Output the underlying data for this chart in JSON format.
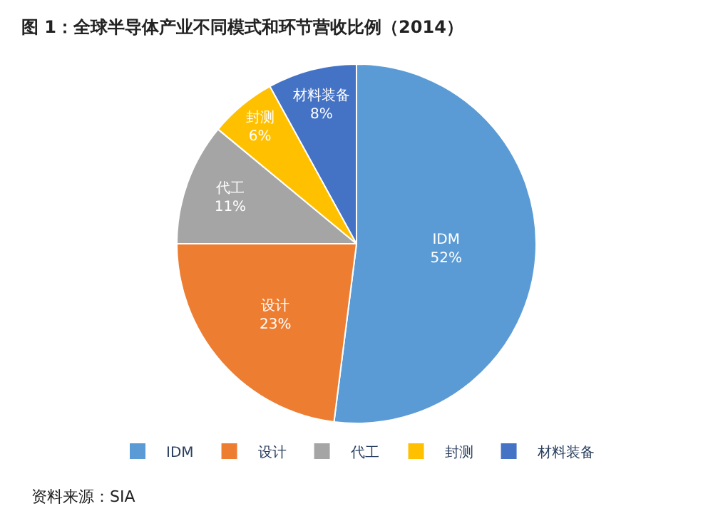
{
  "chart_data": {
    "type": "pie",
    "title": "图 1：全球半导体产业不同模式和环节营收比例（2014）",
    "categories": [
      "IDM",
      "设计",
      "代工",
      "封测",
      "材料装备"
    ],
    "values": [
      52,
      23,
      11,
      6,
      8
    ],
    "value_labels": [
      "52%",
      "23%",
      "11%",
      "6%",
      "8%"
    ],
    "colors": [
      "#5b9bd5",
      "#ed7d31",
      "#a5a5a5",
      "#ffc000",
      "#4472c4"
    ],
    "legend": "bottom",
    "annotations": [
      "资料来源：SIA"
    ]
  }
}
